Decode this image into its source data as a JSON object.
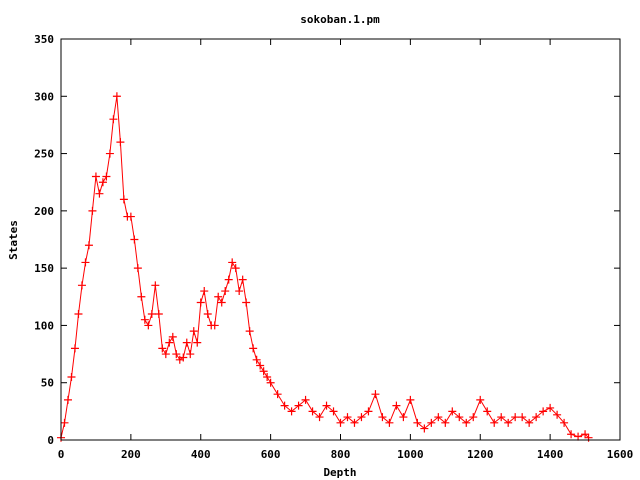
{
  "chart_data": {
    "type": "line",
    "title": "sokoban.1.pm",
    "xlabel": "Depth",
    "ylabel": "States",
    "xlim": [
      0,
      1600
    ],
    "ylim": [
      0,
      350
    ],
    "xticks": [
      0,
      200,
      400,
      600,
      800,
      1000,
      1200,
      1400,
      1600
    ],
    "yticks": [
      0,
      50,
      100,
      150,
      200,
      250,
      300,
      350
    ],
    "grid": false,
    "legend": "none",
    "marker": "plus",
    "series_color": "#ff0000",
    "series": [
      {
        "x": [
          0,
          10,
          20,
          30,
          40,
          50,
          60,
          70,
          80,
          90,
          100,
          110,
          120,
          130,
          140,
          150,
          160,
          170,
          180,
          190,
          200,
          210,
          220,
          230,
          240,
          250,
          260,
          270,
          280,
          290,
          300,
          310,
          320,
          330,
          340,
          350,
          360,
          370,
          380,
          390,
          400,
          410,
          420,
          430,
          440,
          450,
          460,
          470,
          480,
          490,
          500,
          510,
          520,
          530,
          540,
          550,
          560,
          570,
          580,
          590,
          600,
          620,
          640,
          660,
          680,
          700,
          720,
          740,
          760,
          780,
          800,
          820,
          840,
          860,
          880,
          900,
          920,
          940,
          960,
          980,
          1000,
          1020,
          1040,
          1060,
          1080,
          1100,
          1120,
          1140,
          1160,
          1180,
          1200,
          1220,
          1240,
          1260,
          1280,
          1300,
          1320,
          1340,
          1360,
          1380,
          1400,
          1420,
          1440,
          1460,
          1480,
          1500,
          1510
        ],
        "y": [
          2,
          15,
          35,
          55,
          80,
          110,
          135,
          155,
          170,
          200,
          230,
          215,
          225,
          230,
          250,
          280,
          300,
          260,
          210,
          195,
          195,
          175,
          150,
          125,
          105,
          100,
          110,
          135,
          110,
          80,
          75,
          85,
          90,
          75,
          70,
          72,
          85,
          75,
          95,
          85,
          120,
          130,
          110,
          100,
          100,
          125,
          120,
          130,
          140,
          155,
          150,
          130,
          140,
          120,
          95,
          80,
          70,
          65,
          60,
          55,
          50,
          40,
          30,
          25,
          30,
          35,
          25,
          20,
          30,
          25,
          15,
          20,
          15,
          20,
          25,
          40,
          20,
          15,
          30,
          20,
          35,
          15,
          10,
          15,
          20,
          15,
          25,
          20,
          15,
          20,
          35,
          25,
          15,
          20,
          15,
          20,
          20,
          15,
          20,
          25,
          28,
          22,
          15,
          5,
          3,
          5,
          2
        ]
      }
    ]
  }
}
